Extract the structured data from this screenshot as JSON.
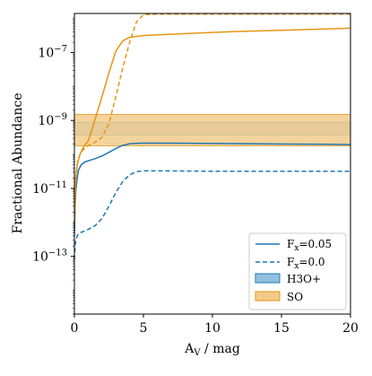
{
  "chart_data": {
    "type": "line",
    "xlabel_main": "A",
    "xlabel_sub": "V",
    "xlabel_rest": " / mag",
    "ylabel": "Fractional Abundance",
    "yscale": "log",
    "xlim": [
      0,
      20
    ],
    "ylim_log10": [
      -14.7,
      -5.85
    ],
    "grid": false,
    "legend_position": "lower-right",
    "x_ticks": [
      {
        "value": 0,
        "label": "0"
      },
      {
        "value": 5,
        "label": "5"
      },
      {
        "value": 10,
        "label": "10"
      },
      {
        "value": 15,
        "label": "15"
      },
      {
        "value": 20,
        "label": "20"
      }
    ],
    "y_ticks": [
      {
        "exp": -13,
        "base": "10",
        "sup": "−13"
      },
      {
        "exp": -11,
        "base": "10",
        "sup": "−11"
      },
      {
        "exp": -9,
        "base": "10",
        "sup": "−9"
      },
      {
        "exp": -7,
        "base": "10",
        "sup": "−7"
      }
    ],
    "series": [
      {
        "name": "F$_x$=0.05",
        "species": "H3O+",
        "color": "#1f77b4",
        "linestyle": "solid",
        "x": [
          0,
          0.05,
          0.1,
          0.2,
          0.3,
          0.5,
          0.75,
          1,
          1.5,
          2,
          2.5,
          3,
          3.5,
          4,
          4.5,
          5,
          6,
          8,
          10,
          12,
          15,
          18,
          20
        ],
        "y": [
          "4e-13",
          "3e-12",
          "8e-12",
          "2e-11",
          "3.5e-11",
          "5e-11",
          "6e-11",
          "6.5e-11",
          "7.5e-11",
          "9e-11",
          "1.15e-10",
          "1.5e-10",
          "1.85e-10",
          "2.05e-10",
          "2.12e-10",
          "2.15e-10",
          "2.15e-10",
          "2.13e-10",
          "2.1e-10",
          "2.07e-10",
          "2.03e-10",
          "1.99e-10",
          "1.95e-10"
        ]
      },
      {
        "name": "F$_x$=0.0",
        "species": "H3O+",
        "color": "#1f77b4",
        "linestyle": "dashed",
        "x": [
          0,
          0.05,
          0.1,
          0.2,
          0.3,
          0.5,
          0.75,
          1,
          1.5,
          2,
          2.5,
          3,
          3.5,
          4,
          4.5,
          5,
          6,
          8,
          10,
          15,
          20
        ],
        "y": [
          "8e-14",
          "2e-13",
          "3e-13",
          "4e-13",
          "4.6e-13",
          "5.1e-13",
          "5.6e-13",
          "6.2e-13",
          "8e-13",
          "1.3e-12",
          "3e-12",
          "7.5e-12",
          "1.6e-11",
          "2.5e-11",
          "3.1e-11",
          "3.3e-11",
          "3.3e-11",
          "3.25e-11",
          "3.2e-11",
          "3.2e-11",
          "3.2e-11"
        ]
      },
      {
        "name": "F$_x$=0.05",
        "species": "SO",
        "color": "#e69512",
        "linestyle": "solid",
        "x": [
          0,
          0.1,
          0.2,
          0.4,
          0.6,
          0.8,
          1,
          1.25,
          1.5,
          2,
          2.5,
          3,
          3.5,
          4,
          4.5,
          5,
          6,
          8,
          10,
          12,
          15,
          18,
          20
        ],
        "y": [
          "1e-12",
          "2e-11",
          "5e-11",
          "1e-10",
          "1.5e-10",
          "2e-10",
          "2.5e-10",
          "5e-10",
          "1.1e-9",
          "5e-9",
          "2.5e-8",
          "1.1e-7",
          "2.2e-7",
          "2.8e-7",
          "3e-7",
          "3.15e-7",
          "3.3e-7",
          "3.6e-7",
          "3.9e-7",
          "4.2e-7",
          "4.5e-7",
          "4.9e-7",
          "5.2e-7"
        ]
      },
      {
        "name": "F$_x$=0.0",
        "species": "SO",
        "color": "#e69512",
        "linestyle": "dashed",
        "x": [
          0,
          0.1,
          0.25,
          0.5,
          0.75,
          1,
          1.5,
          2,
          2.5,
          3,
          3.5,
          4,
          4.5,
          5,
          6,
          8,
          10,
          15,
          20
        ],
        "y": [
          "1e-12",
          "2e-11",
          "7e-11",
          "1.2e-10",
          "1.5e-10",
          "1.8e-10",
          "2.3e-10",
          "3.2e-10",
          "8e-10",
          "5e-9",
          "3.5e-8",
          "2e-7",
          "8e-7",
          "1.3e-6",
          "1.35e-6",
          "1.35e-6",
          "1.35e-6",
          "1.35e-6",
          "1.35e-6"
        ]
      }
    ],
    "observed_bands": [
      {
        "name": "H3O+",
        "color": "#1f77b4",
        "fill_color": "#90c0e0",
        "y_min": "3.7e-10",
        "y_max": "8.8e-10"
      },
      {
        "name": "SO",
        "color": "#e69512",
        "fill_color": "#f2cb8c",
        "y_min": "1.8e-10",
        "y_max": "1.5e-9"
      }
    ],
    "legend": [
      {
        "name": "F$_x$=0.05",
        "kind": "line",
        "color": "#1f77b4",
        "linestyle": "solid",
        "label_main": "F",
        "label_sub": "x",
        "label_rest": "=0.05"
      },
      {
        "name": "F$_x$=0.0",
        "kind": "line",
        "color": "#1f77b4",
        "linestyle": "dashed",
        "label_main": "F",
        "label_sub": "x",
        "label_rest": "=0.0"
      },
      {
        "name": "H3O+",
        "kind": "patch",
        "fill_color": "#90c0e0",
        "edge_color": "#1f77b4",
        "label": "H3O+"
      },
      {
        "name": "SO",
        "kind": "patch",
        "fill_color": "#f2cb8c",
        "edge_color": "#e69512",
        "label": "SO"
      }
    ]
  }
}
